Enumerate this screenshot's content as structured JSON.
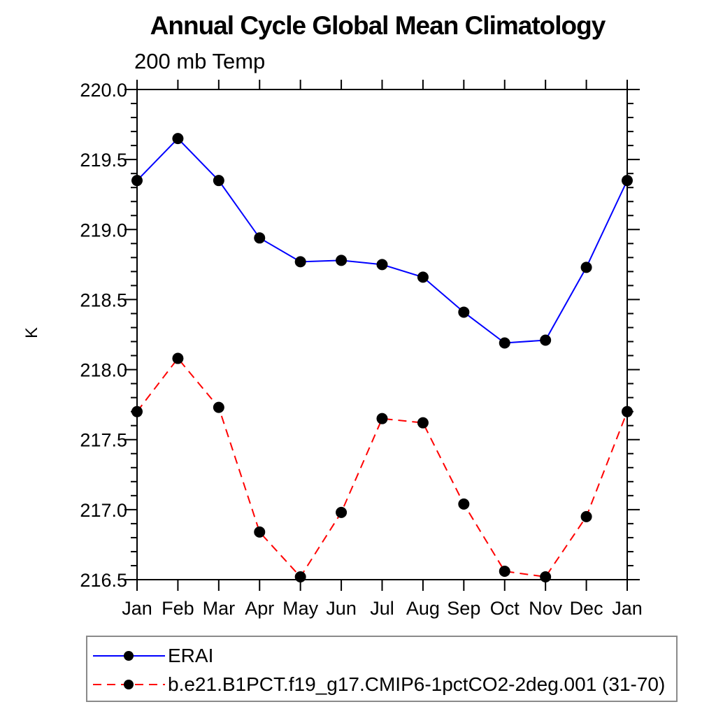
{
  "main": {
    "title": "Annual Cycle Global Mean Climatology",
    "subtitle": "200 mb Temp"
  },
  "chart_data": {
    "type": "line",
    "title": "Annual Cycle Global Mean Climatology",
    "subtitle": "200 mb Temp",
    "xlabel": "",
    "ylabel": "K",
    "categories": [
      "Jan",
      "Feb",
      "Mar",
      "Apr",
      "May",
      "Jun",
      "Jul",
      "Aug",
      "Sep",
      "Oct",
      "Nov",
      "Dec",
      "Jan"
    ],
    "ylim": [
      216.5,
      220.0
    ],
    "ytick_interval": 0.5,
    "ytick_minor_interval": 0.1,
    "ytick_labels": [
      "220.0",
      "219.5",
      "219.0",
      "218.5",
      "218.0",
      "217.5",
      "217.0",
      "216.5"
    ],
    "grid": false,
    "legend_position": "bottom-left-boxed",
    "axis_color": "#000000",
    "marker_color": "#000000",
    "series": [
      {
        "name": "ERAI",
        "color": "#0000ff",
        "line_style": "solid",
        "marker": "circle",
        "values": [
          219.35,
          219.65,
          219.35,
          218.94,
          218.77,
          218.78,
          218.75,
          218.66,
          218.41,
          218.19,
          218.21,
          218.73,
          219.35
        ]
      },
      {
        "name": "b.e21.B1PCT.f19_g17.CMIP6-1pctCO2-2deg.001 (31-70)",
        "color": "#ff0000",
        "line_style": "dashed",
        "marker": "circle",
        "values": [
          217.7,
          218.08,
          217.73,
          216.84,
          216.52,
          216.98,
          217.65,
          217.62,
          217.04,
          216.56,
          216.52,
          216.95,
          217.7
        ]
      }
    ]
  }
}
